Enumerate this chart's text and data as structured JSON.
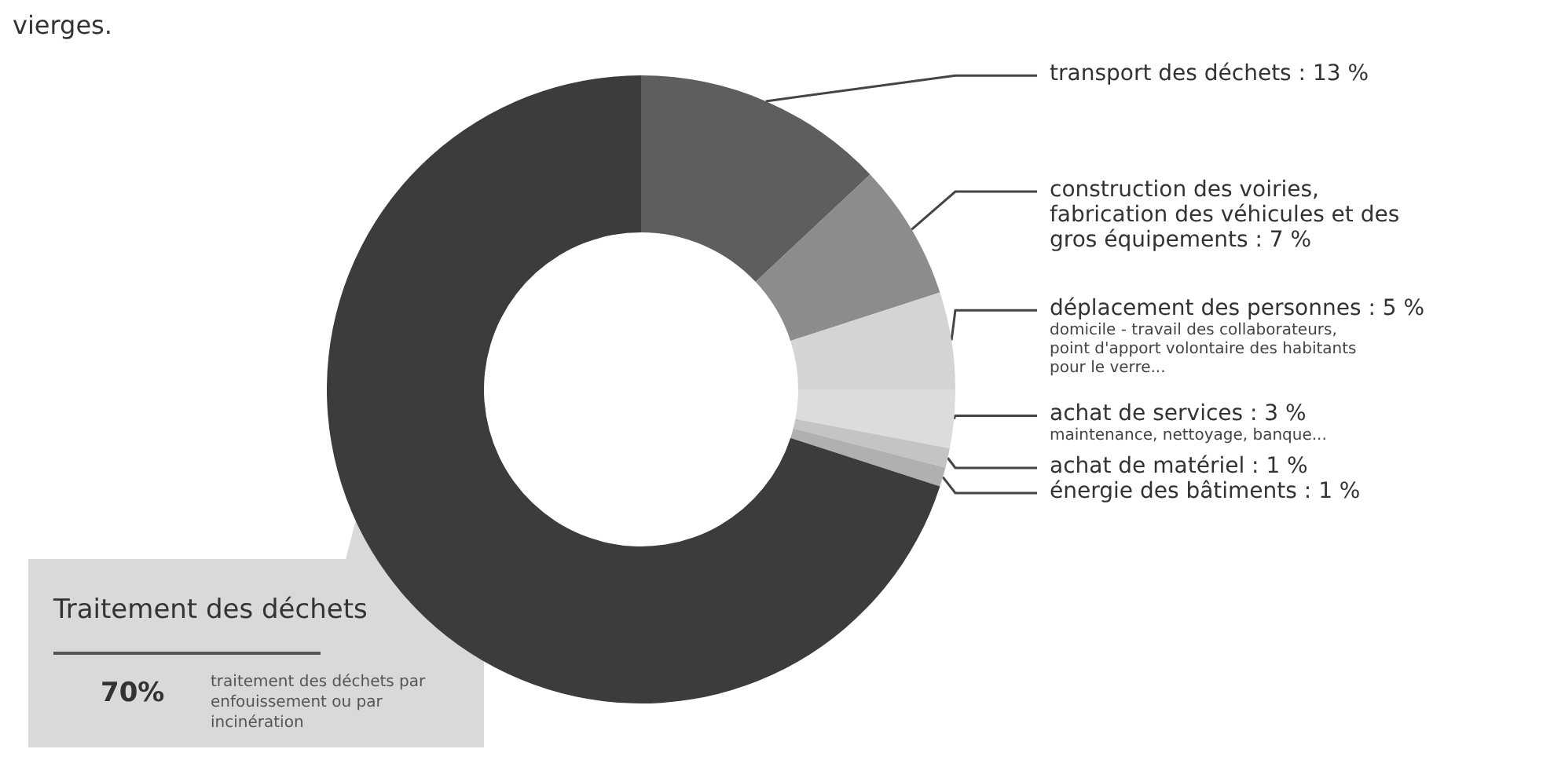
{
  "chart_data": {
    "type": "donut",
    "categories": [
      "transport des déchets : 13 %",
      "construction des voiries, fabrication des véhicules et des gros équipements : 7 %",
      "déplacement des personnes : 5 %",
      "achat de services : 3 %",
      "achat de matériel : 1 %",
      "énergie des bâtiments : 1 %",
      "Traitement des déchets"
    ],
    "values": [
      13,
      7,
      5,
      3,
      1,
      1,
      70
    ],
    "value_labels": [
      null,
      null,
      null,
      null,
      null,
      null,
      "70%"
    ],
    "colors": [
      "#5e5e5e",
      "#8c8c8c",
      "#d4d4d4",
      "#dcdcdc",
      "#c4c4c4",
      "#b0b0b0",
      "#3c3c3c"
    ],
    "annotations": [
      "vierges.",
      {
        "text": "domicile - travail des collaborateurs, point d'apport volontaire des habitants pour le verre...",
        "x": "déplacement des personnes : 5 %"
      },
      {
        "text": "maintenance, nettoyage, banque...",
        "x": "achat de services : 3 %"
      },
      {
        "text": "traitement des déchets par enfouissement ou par incinération",
        "x": "Traitement des déchets"
      }
    ],
    "legend": false
  }
}
